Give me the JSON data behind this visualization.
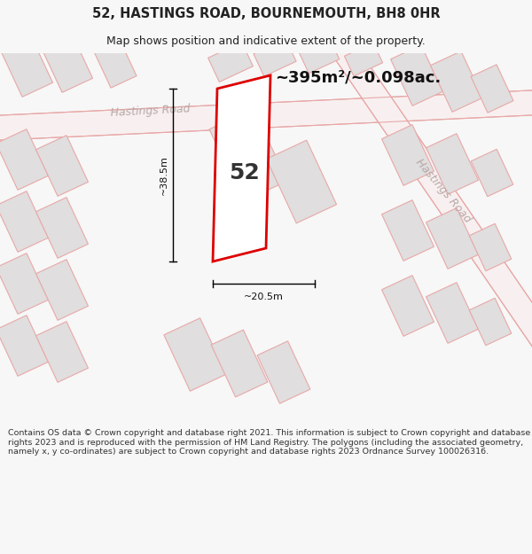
{
  "title_line1": "52, HASTINGS ROAD, BOURNEMOUTH, BH8 0HR",
  "title_line2": "Map shows position and indicative extent of the property.",
  "area_text": "~395m²/~0.098ac.",
  "number_label": "52",
  "dim_width": "~20.5m",
  "dim_height": "~38.5m",
  "road_label1": "Hastings Road",
  "road_label2": "Hastings Road",
  "footer_text": "Contains OS data © Crown copyright and database right 2021. This information is subject to Crown copyright and database rights 2023 and is reproduced with the permission of HM Land Registry. The polygons (including the associated geometry, namely x, y co-ordinates) are subject to Crown copyright and database rights 2023 Ordnance Survey 100026316.",
  "bg_color": "#f7f7f7",
  "map_bg": "#f2f1f0",
  "building_fill": "#e0dede",
  "building_stroke": "#e8a8a8",
  "plot_stroke": "#dd0000",
  "plot_fill": "#ffffff",
  "road_stroke": "#e8a8a8",
  "road_label_color": "#b8a8a8",
  "title_color": "#222222",
  "footer_color": "#333333",
  "title_fontsize": 10.5,
  "subtitle_fontsize": 9,
  "area_fontsize": 13,
  "number_fontsize": 18,
  "dim_fontsize": 8,
  "road_label_fontsize": 9,
  "footer_fontsize": 6.8
}
